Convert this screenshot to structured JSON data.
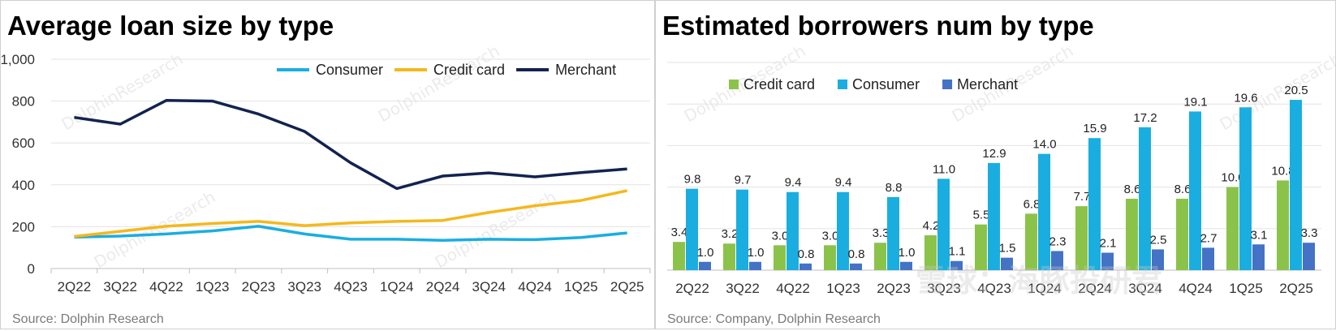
{
  "chart_data": [
    {
      "type": "line",
      "title": "Average loan size by type",
      "source": "Source: Dolphin Research",
      "categories": [
        "2Q22",
        "3Q22",
        "4Q22",
        "1Q23",
        "2Q23",
        "3Q23",
        "4Q23",
        "1Q24",
        "2Q24",
        "3Q24",
        "4Q24",
        "1Q25",
        "2Q25"
      ],
      "ylim": [
        0,
        1000
      ],
      "yticks": [
        0,
        200,
        400,
        600,
        800,
        1000
      ],
      "ytick_labels": [
        "0",
        "200",
        "400",
        "600",
        "800",
        "1,000"
      ],
      "legend_position": "top-right",
      "series": [
        {
          "name": "Consumer",
          "color": "#1aaee0",
          "values": [
            150,
            155,
            165,
            180,
            202,
            165,
            140,
            140,
            135,
            140,
            138,
            148,
            170
          ]
        },
        {
          "name": "Credit card",
          "color": "#f5b81c",
          "values": [
            153,
            178,
            202,
            215,
            225,
            205,
            218,
            225,
            230,
            268,
            300,
            325,
            372
          ]
        },
        {
          "name": "Merchant",
          "color": "#13224f",
          "values": [
            722,
            690,
            803,
            800,
            738,
            655,
            505,
            382,
            442,
            457,
            438,
            458,
            476
          ]
        }
      ]
    },
    {
      "type": "bar",
      "title": "Estimated borrowers num by type",
      "source": "Source: Company, Dolphin Research",
      "categories": [
        "2Q22",
        "3Q22",
        "4Q22",
        "1Q23",
        "2Q23",
        "3Q23",
        "4Q23",
        "1Q24",
        "2Q24",
        "3Q24",
        "4Q24",
        "1Q25",
        "2Q25"
      ],
      "ylim": [
        0,
        25
      ],
      "yticks": [
        0,
        5,
        10,
        15,
        20,
        25
      ],
      "ytick_labels": [
        "0",
        "5",
        "10",
        "15",
        "20",
        "25"
      ],
      "legend_position": "top-left",
      "series": [
        {
          "name": "Credit card",
          "color": "#8bc34a",
          "values": [
            3.4,
            3.2,
            3.0,
            3.0,
            3.3,
            4.2,
            5.5,
            6.8,
            7.7,
            8.6,
            8.6,
            10.0,
            10.8
          ],
          "labels": [
            "3.4",
            "3.2",
            "3.0",
            "3.0",
            "3.3",
            "4.2",
            "5.5",
            "6.8",
            "7.7",
            "8.6",
            "8.6",
            "10.0",
            "10.8"
          ]
        },
        {
          "name": "Consumer",
          "color": "#1aaee0",
          "values": [
            9.8,
            9.7,
            9.4,
            9.4,
            8.8,
            11.0,
            12.9,
            14.0,
            15.9,
            17.2,
            19.1,
            19.6,
            20.5
          ],
          "labels": [
            "9.8",
            "9.7",
            "9.4",
            "9.4",
            "8.8",
            "11.0",
            "12.9",
            "14.0",
            "15.9",
            "17.2",
            "19.1",
            "19.6",
            "20.5"
          ]
        },
        {
          "name": "Merchant",
          "color": "#4472c4",
          "values": [
            1.0,
            1.0,
            0.8,
            0.8,
            1.0,
            1.1,
            1.5,
            2.3,
            2.1,
            2.5,
            2.7,
            3.1,
            3.3
          ],
          "labels": [
            "1.0",
            "1.0",
            "0.8",
            "0.8",
            "1.0",
            "1.1",
            "1.5",
            "2.3",
            "2.1",
            "2.5",
            "2.7",
            "3.1",
            "3.3"
          ]
        }
      ]
    }
  ],
  "watermark": {
    "left_text": "DolphinResearch",
    "right_text": "雪球：海豚投研君"
  }
}
